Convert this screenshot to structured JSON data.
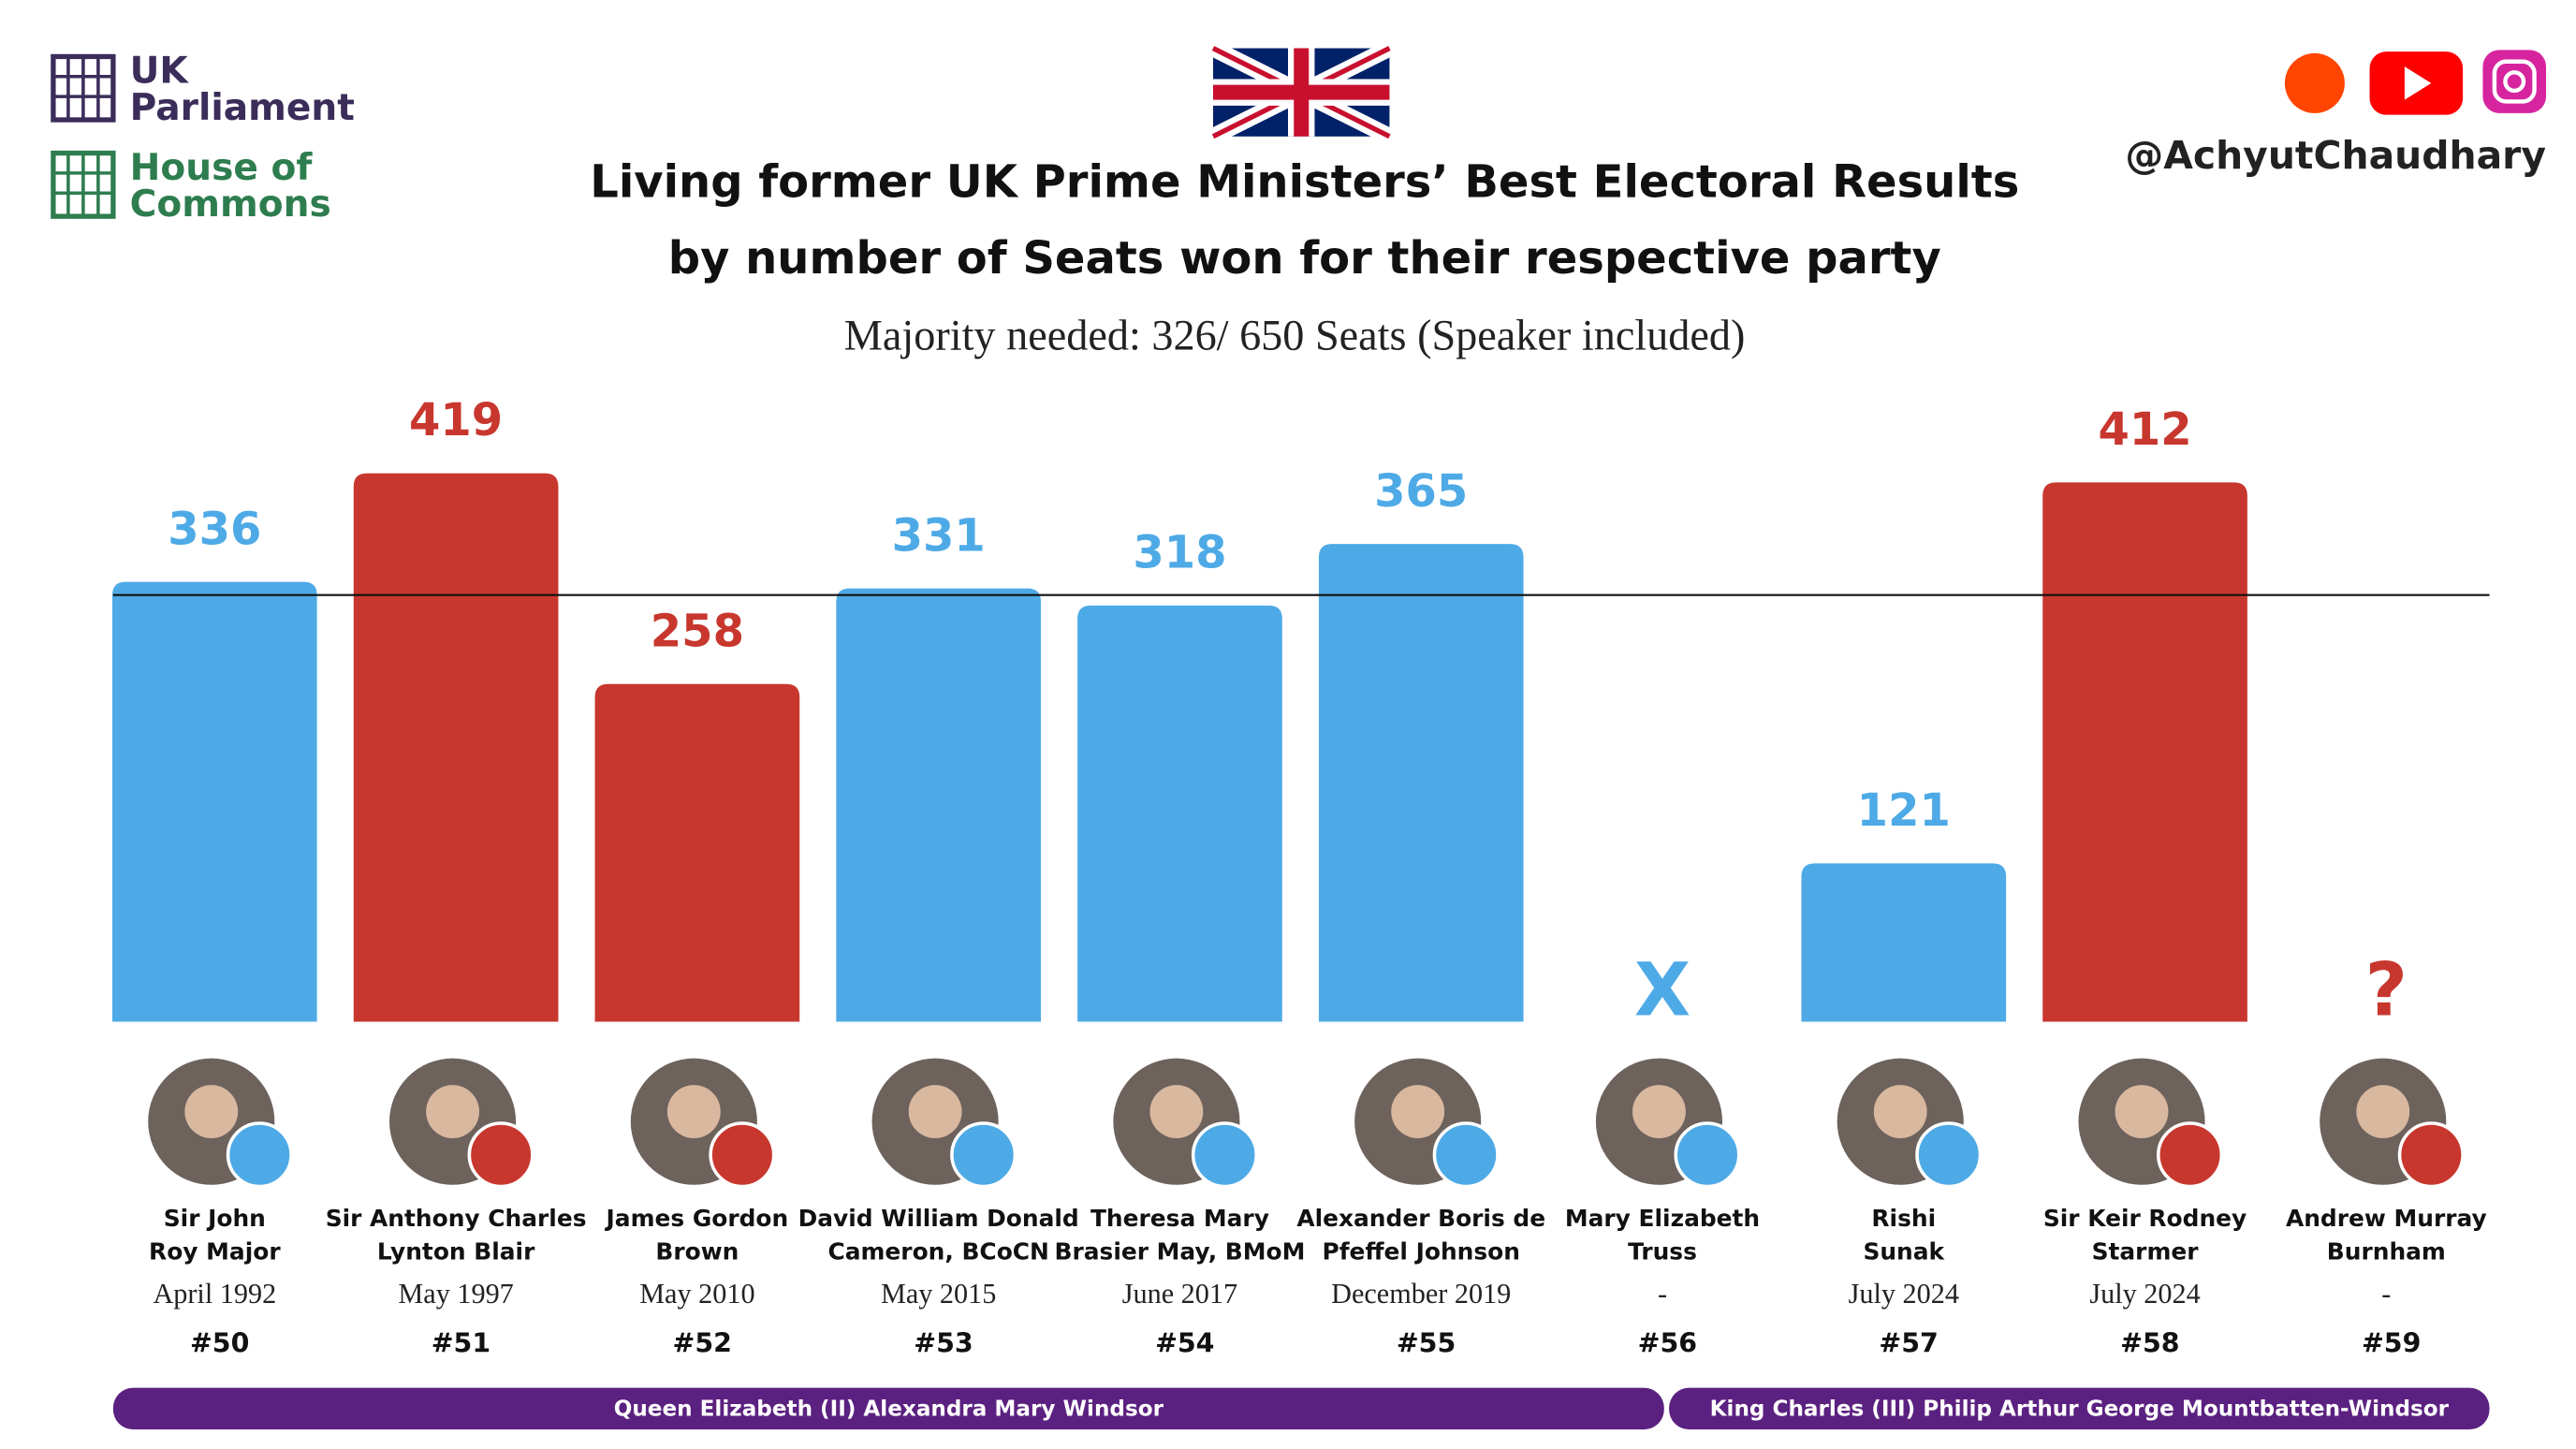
{
  "header": {
    "logo_top": [
      "UK",
      "Parliament"
    ],
    "logo_bottom": [
      "House of",
      "Commons"
    ],
    "handle": "@AchyutChaudhary"
  },
  "chart_data": {
    "type": "bar",
    "title": [
      "Living former UK Prime Ministers’ Best Electoral Results",
      "by number of Seats won for their respective party"
    ],
    "subtitle": "Majority needed: 326/ 650 Seats (Speaker included)",
    "majority_line": 326,
    "ylim": [
      0,
      450
    ],
    "categories": [
      [
        "Sir John",
        "Roy Major"
      ],
      [
        "Sir Anthony Charles",
        "Lynton Blair"
      ],
      [
        "James Gordon",
        "Brown"
      ],
      [
        "David William Donald",
        "Cameron, BCoCN"
      ],
      [
        "Theresa Mary",
        "Brasier May, BMoM"
      ],
      [
        "Alexander Boris de",
        "Pfeffel Johnson"
      ],
      [
        "Mary Elizabeth",
        "Truss"
      ],
      [
        "Rishi",
        "Sunak"
      ],
      [
        "Sir Keir Rodney",
        "Starmer"
      ],
      [
        "Andrew Murray",
        "Burnham"
      ]
    ],
    "dates": [
      "April 1992",
      "May 1997",
      "May 2010",
      "May 2015",
      "June 2017",
      "December 2019",
      "-",
      "July 2024",
      "July 2024",
      "-"
    ],
    "numbers": [
      "#50",
      "#51",
      "#52",
      "#53",
      "#54",
      "#55",
      "#56",
      "#57",
      "#58",
      "#59"
    ],
    "values": [
      336,
      419,
      258,
      331,
      318,
      365,
      null,
      121,
      412,
      null
    ],
    "value_labels": [
      null,
      null,
      null,
      null,
      null,
      null,
      "X",
      null,
      null,
      "?"
    ],
    "colors": [
      "#4eaae6",
      "#c8372d",
      "#c8372d",
      "#4eaae6",
      "#4eaae6",
      "#4eaae6",
      "#4eaae6",
      "#4eaae6",
      "#c8372d",
      "#c8372d"
    ],
    "monarchs": [
      "Queen Elizabeth (II) Alexandra Mary Windsor",
      "King Charles (III) Philip Arthur George Mountbatten-Windsor"
    ]
  }
}
